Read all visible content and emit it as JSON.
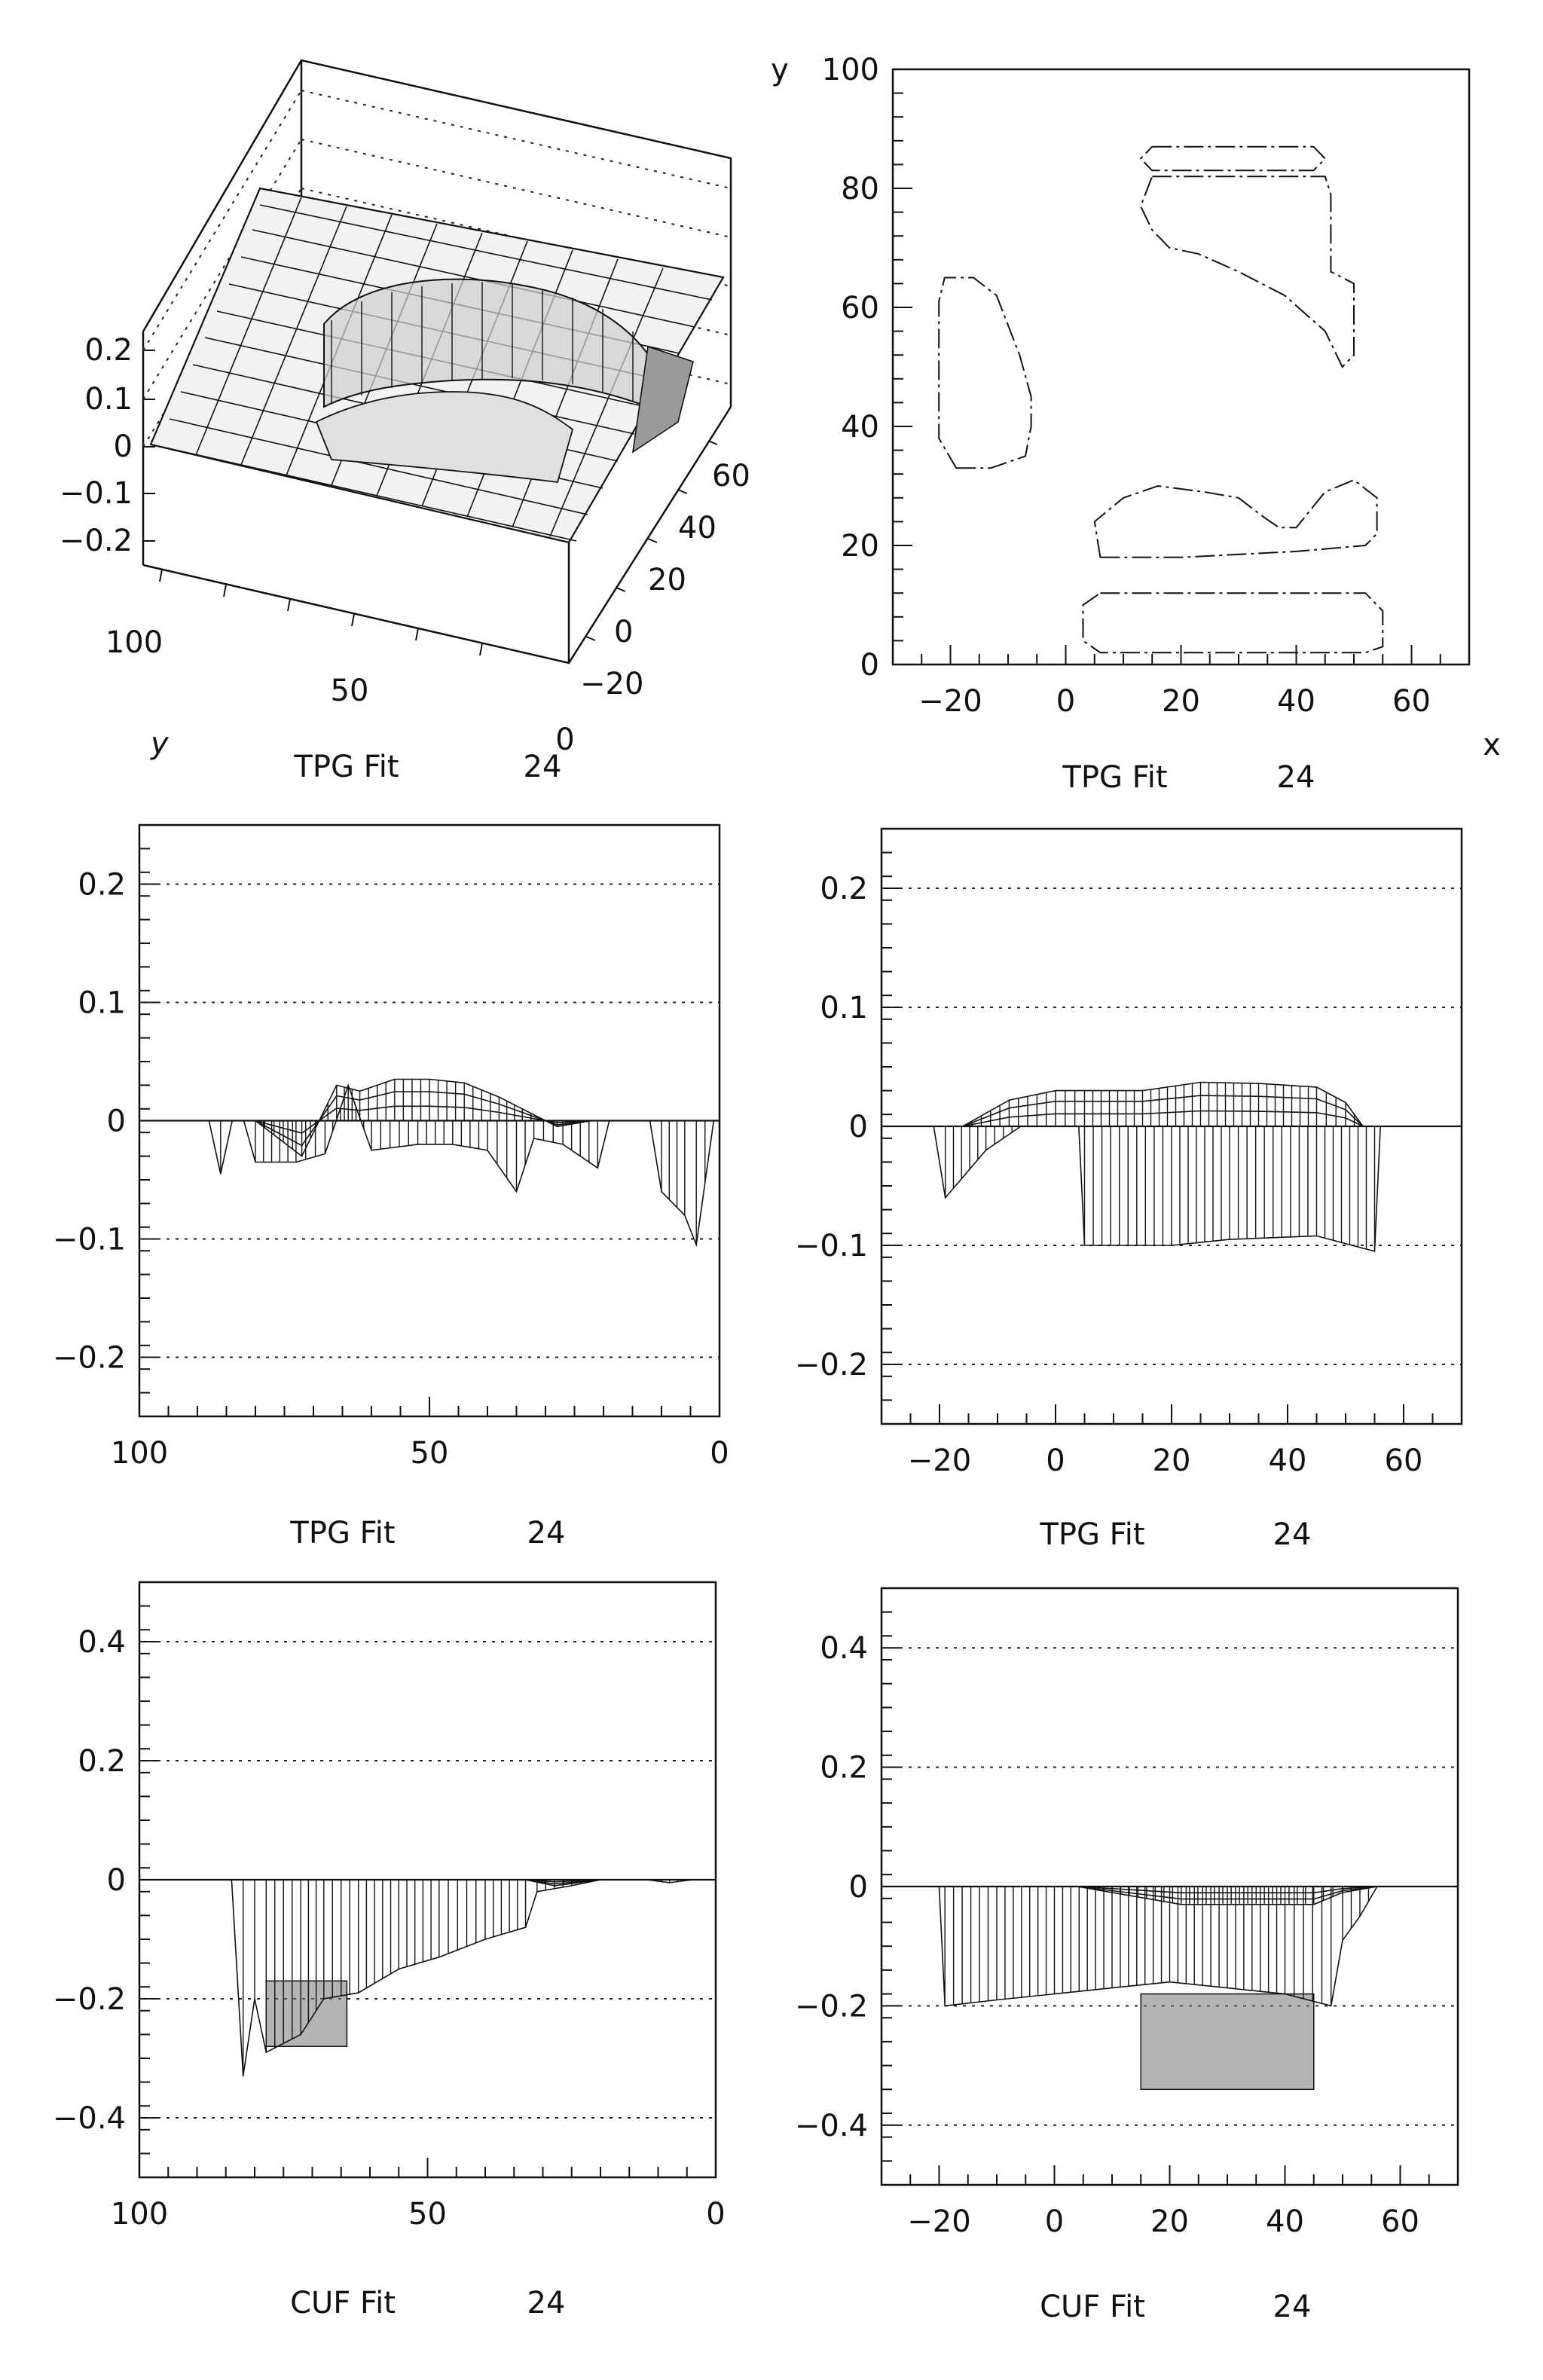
{
  "chart_data": [
    {
      "type": "surface3d",
      "caption": {
        "label": "TPG Fit",
        "number": "24"
      },
      "z_ticks": [
        "0.2",
        "0.1",
        "0",
        "−0.1",
        "−0.2"
      ],
      "z_values": [
        0.2,
        0.1,
        0,
        -0.1,
        -0.2
      ],
      "y_axis": {
        "name": "y",
        "tick_labels": [
          "100",
          "50",
          "0"
        ]
      },
      "x_axis": {
        "tick_labels": [
          "60",
          "40",
          "20",
          "0",
          "−20"
        ]
      }
    },
    {
      "type": "contour",
      "caption": {
        "label": "TPG Fit",
        "number": "24"
      },
      "xlabel": "x",
      "ylabel": "y",
      "xlim": [
        -30,
        70
      ],
      "ylim": [
        0,
        100
      ],
      "x_ticks": [
        "−20",
        "0",
        "20",
        "40",
        "60"
      ],
      "x_tick_values": [
        -20,
        0,
        20,
        40,
        60
      ],
      "y_ticks": [
        "0",
        "20",
        "40",
        "60",
        "80",
        "100"
      ],
      "y_tick_values": [
        0,
        20,
        40,
        60,
        80,
        100
      ],
      "regions": [
        {
          "points": [
            [
              -19,
              33
            ],
            [
              -13,
              33
            ],
            [
              -7,
              35
            ],
            [
              -6,
              40
            ],
            [
              -6,
              45
            ],
            [
              -8,
              52
            ],
            [
              -10,
              57
            ],
            [
              -12,
              62
            ],
            [
              -16,
              65
            ],
            [
              -21,
              65
            ],
            [
              -22,
              61
            ],
            [
              -22,
              38
            ]
          ]
        },
        {
          "points": [
            [
              15,
              87
            ],
            [
              43,
              87
            ],
            [
              45,
              85
            ],
            [
              43,
              83
            ],
            [
              15,
              83
            ],
            [
              13,
              85
            ]
          ]
        },
        {
          "points": [
            [
              15,
              82
            ],
            [
              45,
              82
            ],
            [
              46,
              79
            ],
            [
              46,
              66
            ],
            [
              50,
              64
            ],
            [
              50,
              52
            ],
            [
              48,
              50
            ],
            [
              45,
              56
            ],
            [
              38,
              62
            ],
            [
              30,
              66
            ],
            [
              23,
              69
            ],
            [
              18,
              70
            ],
            [
              15,
              73
            ],
            [
              13,
              77
            ]
          ]
        },
        {
          "points": [
            [
              6,
              18
            ],
            [
              20,
              18
            ],
            [
              40,
              19
            ],
            [
              52,
              20
            ],
            [
              54,
              22
            ],
            [
              54,
              28
            ],
            [
              50,
              31
            ],
            [
              45,
              29
            ],
            [
              40,
              23
            ],
            [
              37,
              23
            ],
            [
              34,
              25
            ],
            [
              30,
              28
            ],
            [
              24,
              29
            ],
            [
              16,
              30
            ],
            [
              10,
              28
            ],
            [
              5,
              24
            ]
          ]
        },
        {
          "points": [
            [
              6,
              12
            ],
            [
              52,
              12
            ],
            [
              55,
              9
            ],
            [
              55,
              3
            ],
            [
              52,
              2
            ],
            [
              6,
              2
            ],
            [
              3,
              4
            ],
            [
              3,
              10
            ]
          ]
        }
      ]
    },
    {
      "type": "profile",
      "caption": {
        "label": "TPG Fit",
        "number": "24"
      },
      "xlim": [
        100,
        0
      ],
      "ylim": [
        -0.25,
        0.25
      ],
      "x_ticks": [
        "100",
        "50",
        "0"
      ],
      "x_tick_values": [
        100,
        50,
        0
      ],
      "y_ticks": [
        "0.2",
        "0.1",
        "0",
        "−0.1",
        "−0.2"
      ],
      "y_tick_values": [
        0.2,
        0.1,
        0,
        -0.1,
        -0.2
      ],
      "lower_envelope": [
        [
          88,
          0
        ],
        [
          86,
          -0.045
        ],
        [
          84,
          0
        ],
        [
          82,
          0
        ],
        [
          80,
          -0.035
        ],
        [
          73,
          -0.035
        ],
        [
          68,
          -0.028
        ],
        [
          64,
          0.03
        ],
        [
          60,
          -0.025
        ],
        [
          52,
          -0.02
        ],
        [
          46,
          -0.02
        ],
        [
          40,
          -0.025
        ],
        [
          35,
          -0.06
        ],
        [
          32,
          -0.015
        ],
        [
          27,
          -0.02
        ],
        [
          21,
          -0.04
        ],
        [
          19,
          0
        ],
        [
          12,
          0
        ],
        [
          10,
          -0.06
        ],
        [
          6,
          -0.08
        ],
        [
          4,
          -0.105
        ],
        [
          1,
          0
        ]
      ],
      "upper_envelope": [
        [
          80,
          0
        ],
        [
          72,
          -0.03
        ],
        [
          66,
          0.03
        ],
        [
          62,
          0.025
        ],
        [
          56,
          0.035
        ],
        [
          50,
          0.035
        ],
        [
          44,
          0.032
        ],
        [
          38,
          0.02
        ],
        [
          34,
          0.01
        ],
        [
          28,
          -0.005
        ],
        [
          22,
          0
        ]
      ]
    },
    {
      "type": "profile",
      "caption": {
        "label": "TPG Fit",
        "number": "24"
      },
      "xlim": [
        -30,
        70
      ],
      "ylim": [
        -0.25,
        0.25
      ],
      "x_ticks": [
        "−20",
        "0",
        "20",
        "40",
        "60"
      ],
      "x_tick_values": [
        -20,
        0,
        20,
        40,
        60
      ],
      "y_ticks": [
        "0.2",
        "0.1",
        "0",
        "−0.1",
        "−0.2"
      ],
      "y_tick_values": [
        0.2,
        0.1,
        0,
        -0.1,
        -0.2
      ],
      "lower_envelope": [
        [
          -21,
          0
        ],
        [
          -19,
          -0.06
        ],
        [
          -12,
          -0.02
        ],
        [
          -6,
          0
        ],
        [
          4,
          0
        ],
        [
          5,
          -0.1
        ],
        [
          20,
          -0.1
        ],
        [
          30,
          -0.095
        ],
        [
          45,
          -0.092
        ],
        [
          55,
          -0.105
        ],
        [
          56,
          0
        ]
      ],
      "upper_envelope": [
        [
          -16,
          0
        ],
        [
          -8,
          0.022
        ],
        [
          0,
          0.03
        ],
        [
          5,
          0.03
        ],
        [
          15,
          0.03
        ],
        [
          25,
          0.037
        ],
        [
          35,
          0.036
        ],
        [
          45,
          0.033
        ],
        [
          50,
          0.02
        ],
        [
          53,
          0
        ]
      ]
    },
    {
      "type": "profile",
      "caption": {
        "label": "CUF Fit",
        "number": "24"
      },
      "xlim": [
        100,
        0
      ],
      "ylim": [
        -0.5,
        0.5
      ],
      "x_ticks": [
        "100",
        "50",
        "0"
      ],
      "x_tick_values": [
        100,
        50,
        0
      ],
      "y_ticks": [
        "0.4",
        "0.2",
        "0",
        "−0.2",
        "−0.4"
      ],
      "y_tick_values": [
        0.4,
        0.2,
        0,
        -0.2,
        -0.4
      ],
      "lower_envelope": [
        [
          84,
          0
        ],
        [
          82,
          -0.33
        ],
        [
          80,
          -0.2
        ],
        [
          78,
          -0.29
        ],
        [
          72,
          -0.26
        ],
        [
          68,
          -0.2
        ],
        [
          62,
          -0.19
        ],
        [
          55,
          -0.15
        ],
        [
          48,
          -0.13
        ],
        [
          40,
          -0.1
        ],
        [
          33,
          -0.08
        ],
        [
          31,
          -0.02
        ],
        [
          25,
          -0.01
        ],
        [
          20,
          0
        ],
        [
          12,
          0
        ],
        [
          8,
          -0.005
        ],
        [
          4,
          0
        ]
      ],
      "upper_envelope": [
        [
          33,
          0
        ],
        [
          28,
          -0.01
        ],
        [
          20,
          0
        ]
      ],
      "dense_band": {
        "x_range": [
          78,
          64
        ],
        "top": -0.17,
        "bottom": -0.28
      }
    },
    {
      "type": "profile",
      "caption": {
        "label": "CUF Fit",
        "number": "24"
      },
      "xlim": [
        -30,
        70
      ],
      "ylim": [
        -0.5,
        0.5
      ],
      "x_ticks": [
        "−20",
        "0",
        "20",
        "40",
        "60"
      ],
      "x_tick_values": [
        -20,
        0,
        20,
        40,
        60
      ],
      "y_ticks": [
        "0.4",
        "0.2",
        "0",
        "−0.2",
        "−0.4"
      ],
      "y_tick_values": [
        0.4,
        0.2,
        0,
        -0.2,
        -0.4
      ],
      "lower_envelope": [
        [
          -20,
          0
        ],
        [
          -19,
          -0.2
        ],
        [
          -10,
          -0.19
        ],
        [
          0,
          -0.18
        ],
        [
          10,
          -0.17
        ],
        [
          20,
          -0.16
        ],
        [
          30,
          -0.17
        ],
        [
          40,
          -0.18
        ],
        [
          48,
          -0.2
        ],
        [
          50,
          -0.09
        ],
        [
          53,
          -0.05
        ],
        [
          56,
          0
        ]
      ],
      "upper_envelope": [
        [
          4,
          0
        ],
        [
          10,
          -0.01
        ],
        [
          22,
          -0.03
        ],
        [
          35,
          -0.03
        ],
        [
          45,
          -0.03
        ],
        [
          50,
          -0.01
        ],
        [
          56,
          0
        ]
      ],
      "dense_band": {
        "x_range": [
          15,
          45
        ],
        "top": -0.18,
        "bottom": -0.34
      }
    }
  ]
}
